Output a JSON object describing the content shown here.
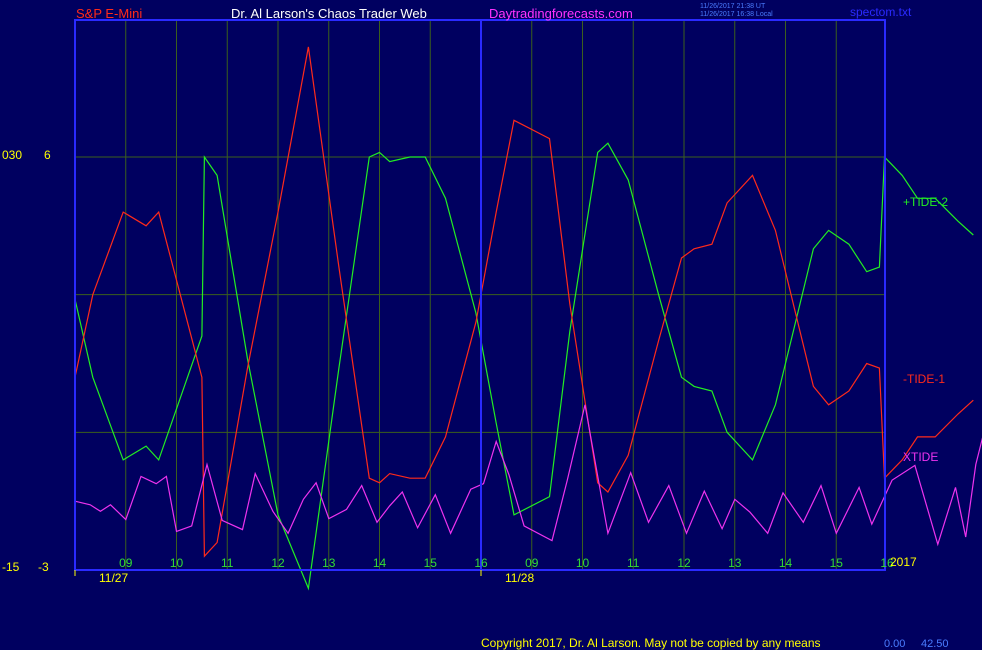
{
  "header": {
    "symbol": "S&P E-Mini",
    "author": "Dr. Al Larson's Chaos Trader Web",
    "site": "Daytradingforecasts.com",
    "timestamp_ut": "11/26/2017 21:38 UT",
    "timestamp_local": "11/26/2017 16:38 Local",
    "file": "spectom.txt"
  },
  "footer": {
    "copyright": "Copyright 2017, Dr. Al Larson. May not be copied by any means",
    "readout_a": "0.00",
    "readout_b": "42.50"
  },
  "left_axis": {
    "labels_upper": [
      "030",
      "6"
    ],
    "labels_lower": [
      "-15",
      "-3"
    ]
  },
  "year_label": "2017",
  "colors": {
    "background": "#000060",
    "frame": "#2a2aff",
    "grid": "#3b5f1c",
    "tide1": "#ff2a1a",
    "tide2": "#22ee22",
    "xtide": "#ee33ee",
    "axis_text": "#ffff00",
    "hour_text": "#33dd33",
    "date_text": "#ffff00"
  },
  "chart_data": {
    "type": "line",
    "title": "",
    "x_unit": "hours from chart start (11/27 08:00)",
    "x_range": [
      0,
      40
    ],
    "hour_ticks": [
      {
        "x": 1,
        "label": "09"
      },
      {
        "x": 2,
        "label": "10"
      },
      {
        "x": 3,
        "label": "11"
      },
      {
        "x": 4,
        "label": "12"
      },
      {
        "x": 5,
        "label": "13"
      },
      {
        "x": 6,
        "label": "14"
      },
      {
        "x": 7,
        "label": "15"
      },
      {
        "x": 8,
        "label": "16"
      },
      {
        "x": 9,
        "label": "09"
      },
      {
        "x": 10,
        "label": "10"
      },
      {
        "x": 11,
        "label": "11"
      },
      {
        "x": 12,
        "label": "12"
      },
      {
        "x": 13,
        "label": "13"
      },
      {
        "x": 14,
        "label": "14"
      },
      {
        "x": 15,
        "label": "15"
      },
      {
        "x": 16,
        "label": "16"
      }
    ],
    "date_ticks": [
      {
        "x": 0,
        "label": "11/27"
      },
      {
        "x": 8,
        "label": "11/28"
      }
    ],
    "tide_axis": {
      "min": -3,
      "max": 6
    },
    "xtide_axis": {
      "min": -15,
      "max": 30
    },
    "series": [
      {
        "name": "+TIDE-2",
        "axis": "tide",
        "points": [
          [
            0.0,
            2.9
          ],
          [
            0.35,
            1.2
          ],
          [
            0.95,
            -0.6
          ],
          [
            1.4,
            -0.3
          ],
          [
            1.65,
            -0.6
          ],
          [
            2.5,
            2.1
          ],
          [
            2.55,
            6.0
          ],
          [
            2.8,
            5.6
          ],
          [
            3.4,
            1.6
          ],
          [
            4.0,
            -1.8
          ],
          [
            4.6,
            -3.4
          ],
          [
            5.2,
            1.4
          ],
          [
            5.8,
            6.0
          ],
          [
            6.0,
            6.1
          ],
          [
            6.2,
            5.9
          ],
          [
            6.6,
            6.0
          ],
          [
            6.9,
            6.0
          ],
          [
            7.3,
            5.1
          ],
          [
            7.9,
            2.6
          ],
          [
            8.3,
            0.2
          ],
          [
            8.65,
            -1.8
          ],
          [
            9.35,
            -1.4
          ],
          [
            9.75,
            2.2
          ],
          [
            10.3,
            6.1
          ],
          [
            10.5,
            6.3
          ],
          [
            10.9,
            5.5
          ],
          [
            11.5,
            3.0
          ],
          [
            11.95,
            1.2
          ],
          [
            12.2,
            1.0
          ],
          [
            12.55,
            0.9
          ],
          [
            12.85,
            0.0
          ],
          [
            13.35,
            -0.6
          ],
          [
            13.8,
            0.6
          ],
          [
            14.55,
            4.0
          ],
          [
            14.85,
            4.4
          ],
          [
            15.25,
            4.1
          ],
          [
            15.6,
            3.5
          ],
          [
            15.85,
            3.6
          ],
          [
            15.95,
            6.0
          ],
          [
            16.3,
            5.6
          ],
          [
            16.6,
            5.1
          ],
          [
            16.95,
            5.1
          ],
          [
            17.4,
            4.6
          ],
          [
            17.7,
            4.3
          ]
        ]
      },
      {
        "name": "-TIDE-1",
        "axis": "tide",
        "points": [
          [
            0.0,
            1.2
          ],
          [
            0.35,
            3.0
          ],
          [
            0.95,
            4.8
          ],
          [
            1.4,
            4.5
          ],
          [
            1.65,
            4.8
          ],
          [
            2.5,
            1.2
          ],
          [
            2.55,
            -2.7
          ],
          [
            2.8,
            -2.4
          ],
          [
            3.4,
            1.4
          ],
          [
            4.0,
            4.8
          ],
          [
            4.6,
            8.4
          ],
          [
            5.2,
            3.6
          ],
          [
            5.8,
            -1.0
          ],
          [
            6.0,
            -1.1
          ],
          [
            6.2,
            -0.9
          ],
          [
            6.6,
            -1.0
          ],
          [
            6.9,
            -1.0
          ],
          [
            7.3,
            -0.1
          ],
          [
            7.9,
            2.4
          ],
          [
            8.3,
            4.8
          ],
          [
            8.65,
            6.8
          ],
          [
            9.35,
            6.4
          ],
          [
            9.75,
            2.8
          ],
          [
            10.3,
            -1.1
          ],
          [
            10.5,
            -1.3
          ],
          [
            10.9,
            -0.5
          ],
          [
            11.5,
            2.0
          ],
          [
            11.95,
            3.8
          ],
          [
            12.2,
            4.0
          ],
          [
            12.55,
            4.1
          ],
          [
            12.85,
            5.0
          ],
          [
            13.35,
            5.6
          ],
          [
            13.8,
            4.4
          ],
          [
            14.55,
            1.0
          ],
          [
            14.85,
            0.6
          ],
          [
            15.25,
            0.9
          ],
          [
            15.6,
            1.5
          ],
          [
            15.85,
            1.4
          ],
          [
            15.95,
            -1.0
          ],
          [
            16.3,
            -0.6
          ],
          [
            16.6,
            -0.1
          ],
          [
            16.95,
            -0.1
          ],
          [
            17.4,
            0.4
          ],
          [
            17.7,
            0.7
          ]
        ]
      },
      {
        "name": "XTIDE",
        "axis": "xtide",
        "points": [
          [
            0.0,
            -7.5
          ],
          [
            0.3,
            -7.9
          ],
          [
            0.5,
            -8.6
          ],
          [
            0.7,
            -7.9
          ],
          [
            1.0,
            -9.5
          ],
          [
            1.3,
            -4.8
          ],
          [
            1.6,
            -5.6
          ],
          [
            1.8,
            -4.8
          ],
          [
            2.0,
            -10.8
          ],
          [
            2.3,
            -10.2
          ],
          [
            2.6,
            -3.5
          ],
          [
            2.9,
            -9.6
          ],
          [
            3.3,
            -10.6
          ],
          [
            3.55,
            -4.5
          ],
          [
            3.9,
            -8.6
          ],
          [
            4.2,
            -11.0
          ],
          [
            4.5,
            -7.3
          ],
          [
            4.75,
            -5.5
          ],
          [
            5.0,
            -9.4
          ],
          [
            5.35,
            -8.4
          ],
          [
            5.65,
            -5.8
          ],
          [
            5.95,
            -9.8
          ],
          [
            6.2,
            -8.0
          ],
          [
            6.45,
            -6.5
          ],
          [
            6.75,
            -10.4
          ],
          [
            7.1,
            -6.8
          ],
          [
            7.4,
            -11.0
          ],
          [
            7.8,
            -6.2
          ],
          [
            8.05,
            -5.6
          ],
          [
            8.3,
            -1.0
          ],
          [
            8.55,
            -4.6
          ],
          [
            8.85,
            -10.2
          ],
          [
            9.4,
            -11.8
          ],
          [
            9.7,
            -5.2
          ],
          [
            10.05,
            3.0
          ],
          [
            10.5,
            -11.0
          ],
          [
            10.95,
            -4.4
          ],
          [
            11.3,
            -9.8
          ],
          [
            11.7,
            -5.8
          ],
          [
            12.05,
            -11.0
          ],
          [
            12.4,
            -6.4
          ],
          [
            12.75,
            -10.5
          ],
          [
            13.0,
            -7.3
          ],
          [
            13.3,
            -8.7
          ],
          [
            13.65,
            -11.0
          ],
          [
            13.95,
            -6.6
          ],
          [
            14.35,
            -9.8
          ],
          [
            14.7,
            -5.8
          ],
          [
            15.0,
            -11.0
          ],
          [
            15.45,
            -6.0
          ],
          [
            15.7,
            -10.0
          ],
          [
            16.1,
            -5.2
          ],
          [
            16.55,
            -3.6
          ],
          [
            17.0,
            -12.2
          ],
          [
            17.35,
            -6.0
          ],
          [
            17.55,
            -11.4
          ],
          [
            17.75,
            -3.5
          ],
          [
            17.9,
            -0.2
          ],
          [
            18.05,
            -2.0
          ]
        ]
      }
    ]
  }
}
